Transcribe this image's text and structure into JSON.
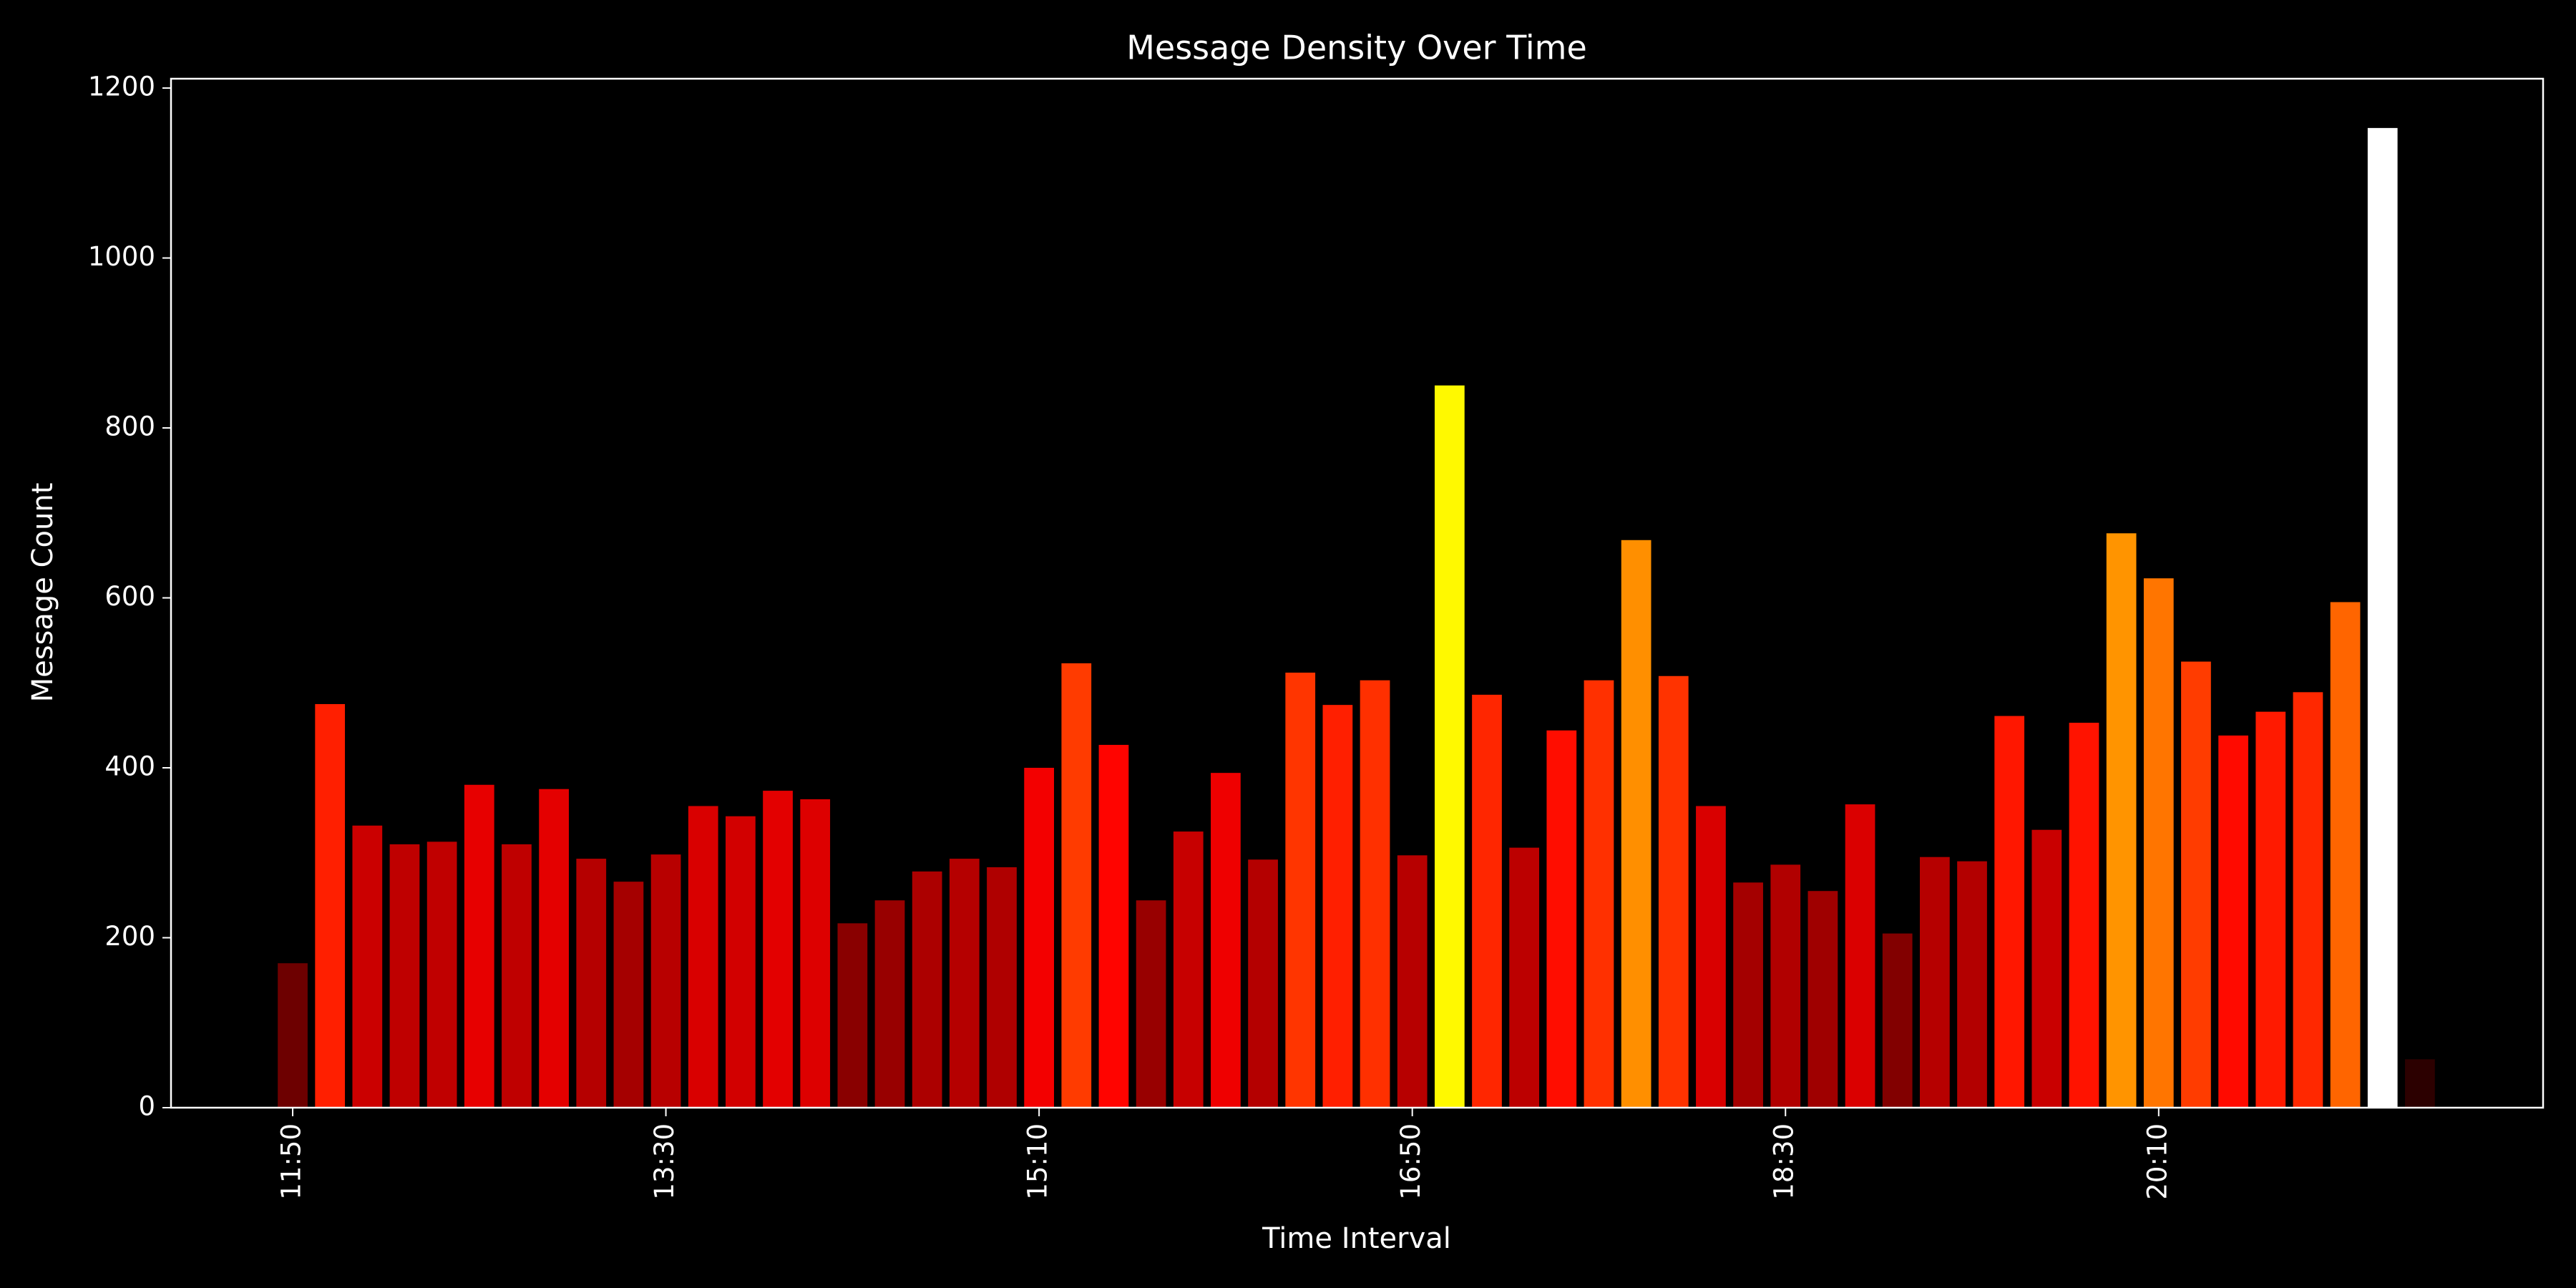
{
  "chart_data": {
    "type": "bar",
    "title": "Message Density Over Time",
    "x_label": "Time Interval",
    "y_label": "Message Count",
    "categories": [
      "11:50",
      null,
      null,
      null,
      null,
      null,
      null,
      null,
      null,
      null,
      "13:30",
      null,
      null,
      null,
      null,
      null,
      null,
      null,
      null,
      null,
      "15:10",
      null,
      null,
      null,
      null,
      null,
      null,
      null,
      null,
      null,
      "16:50",
      null,
      null,
      null,
      null,
      null,
      null,
      null,
      null,
      null,
      "18:30",
      null,
      null,
      null,
      null,
      null,
      null,
      null,
      null,
      null,
      "20:10",
      null,
      null,
      null,
      null,
      null,
      null,
      null
    ],
    "values": [
      170,
      475,
      332,
      310,
      313,
      380,
      310,
      375,
      293,
      266,
      298,
      355,
      343,
      373,
      363,
      217,
      244,
      278,
      293,
      283,
      400,
      523,
      427,
      244,
      325,
      394,
      292,
      512,
      474,
      503,
      297,
      850,
      486,
      306,
      444,
      503,
      668,
      508,
      355,
      265,
      286,
      255,
      357,
      205,
      295,
      290,
      461,
      327,
      453,
      676,
      623,
      525,
      438,
      466,
      489,
      595,
      1153,
      57
    ],
    "colormap": "hot",
    "ylim": [
      0,
      1211
    ],
    "yticks": [
      0,
      200,
      400,
      600,
      800,
      1000,
      1200
    ],
    "grid": false
  }
}
